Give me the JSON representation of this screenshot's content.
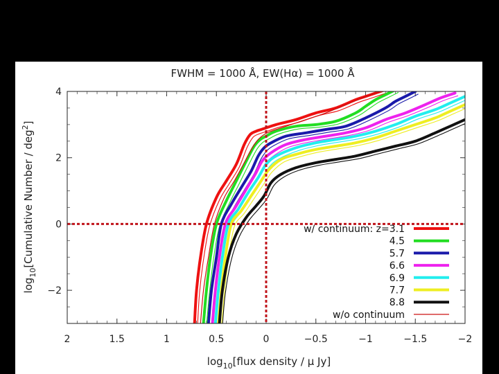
{
  "chart_data": {
    "type": "line",
    "title": "FWHM = 1000 Å, EW(Hα) = 1000 Å",
    "xlabel_main": "log",
    "xlabel_sub": "10",
    "xlabel_rest": "[flux density / μ Jy]",
    "ylabel_main": "log",
    "ylabel_sub": "10",
    "ylabel_rest": "[Cumulative Number / deg",
    "ylabel_sup": "2",
    "ylabel_end": "]",
    "xlim": [
      2,
      -2
    ],
    "ylim": [
      -3,
      4
    ],
    "x_ticks": [
      {
        "value": 2,
        "label": "2"
      },
      {
        "value": 1.5,
        "label": "1.5"
      },
      {
        "value": 1,
        "label": "1"
      },
      {
        "value": 0.5,
        "label": "0.5"
      },
      {
        "value": 0,
        "label": "0"
      },
      {
        "value": -0.5,
        "label": "−0.5"
      },
      {
        "value": -1,
        "label": "−1"
      },
      {
        "value": -1.5,
        "label": "−1.5"
      },
      {
        "value": -2,
        "label": "−2"
      }
    ],
    "y_ticks": [
      {
        "value": 4,
        "label": "4"
      },
      {
        "value": 2,
        "label": "2"
      },
      {
        "value": 0,
        "label": "0"
      },
      {
        "value": -2,
        "label": "−2"
      }
    ],
    "reference_lines": {
      "x": 0,
      "y": 0,
      "color": "#c0141b",
      "style": "dotted"
    },
    "legend_header": "w/ continuum: z=",
    "series": [
      {
        "name": "3.1",
        "color": "#ee1111",
        "x": [
          0.72,
          0.7,
          0.66,
          0.6,
          0.5,
          0.4,
          0.3,
          0.22,
          0.16,
          0.1,
          0.05,
          0.0,
          -0.1,
          -0.3,
          -0.5,
          -0.7,
          -0.9,
          -1.0,
          -1.1,
          -1.2,
          -1.3
        ],
        "y": [
          -3.0,
          -2.0,
          -1.0,
          0.0,
          0.8,
          1.3,
          1.8,
          2.4,
          2.7,
          2.8,
          2.85,
          2.9,
          3.0,
          3.15,
          3.35,
          3.5,
          3.75,
          3.85,
          3.95,
          4.05,
          4.15
        ]
      },
      {
        "name": "4.5",
        "color": "#22dd22",
        "x": [
          0.63,
          0.6,
          0.56,
          0.5,
          0.4,
          0.3,
          0.2,
          0.12,
          0.06,
          0.0,
          -0.1,
          -0.3,
          -0.5,
          -0.7,
          -0.9,
          -1.0,
          -1.1,
          -1.2,
          -1.3
        ],
        "y": [
          -3.0,
          -2.0,
          -1.0,
          0.0,
          0.7,
          1.3,
          1.9,
          2.35,
          2.55,
          2.65,
          2.8,
          2.95,
          3.0,
          3.1,
          3.35,
          3.55,
          3.75,
          3.9,
          4.05
        ]
      },
      {
        "name": "5.7",
        "color": "#1a1aaa",
        "x": [
          0.58,
          0.55,
          0.5,
          0.45,
          0.35,
          0.25,
          0.15,
          0.08,
          0.02,
          -0.05,
          -0.2,
          -0.4,
          -0.6,
          -0.8,
          -1.0,
          -1.2,
          -1.3,
          -1.4,
          -1.5
        ],
        "y": [
          -3.0,
          -2.0,
          -1.0,
          0.0,
          0.6,
          1.1,
          1.6,
          2.05,
          2.3,
          2.45,
          2.65,
          2.75,
          2.85,
          2.95,
          3.2,
          3.5,
          3.7,
          3.85,
          4.0
        ]
      },
      {
        "name": "6.6",
        "color": "#ee22ee",
        "x": [
          0.54,
          0.51,
          0.47,
          0.41,
          0.31,
          0.21,
          0.11,
          0.04,
          -0.05,
          -0.2,
          -0.4,
          -0.6,
          -0.8,
          -1.0,
          -1.2,
          -1.4,
          -1.6,
          -1.75,
          -1.9
        ],
        "y": [
          -3.0,
          -2.0,
          -1.0,
          0.0,
          0.5,
          1.0,
          1.5,
          1.9,
          2.15,
          2.4,
          2.55,
          2.65,
          2.75,
          2.9,
          3.15,
          3.35,
          3.6,
          3.8,
          3.95
        ]
      },
      {
        "name": "6.9",
        "color": "#22eeee",
        "x": [
          0.51,
          0.48,
          0.44,
          0.38,
          0.28,
          0.18,
          0.08,
          0.0,
          -0.1,
          -0.3,
          -0.5,
          -0.7,
          -0.9,
          -1.1,
          -1.3,
          -1.5,
          -1.7,
          -1.85,
          -2.0
        ],
        "y": [
          -3.0,
          -2.0,
          -1.0,
          0.0,
          0.45,
          0.95,
          1.4,
          1.8,
          2.05,
          2.3,
          2.45,
          2.55,
          2.65,
          2.8,
          3.0,
          3.25,
          3.45,
          3.65,
          3.85
        ]
      },
      {
        "name": "7.7",
        "color": "#eeee22",
        "x": [
          0.48,
          0.45,
          0.41,
          0.35,
          0.25,
          0.15,
          0.05,
          -0.03,
          -0.15,
          -0.3,
          -0.5,
          -0.7,
          -0.9,
          -1.1,
          -1.3,
          -1.5,
          -1.7,
          -1.85,
          -2.0
        ],
        "y": [
          -3.0,
          -2.0,
          -1.0,
          0.0,
          0.4,
          0.85,
          1.3,
          1.65,
          1.95,
          2.1,
          2.25,
          2.35,
          2.45,
          2.6,
          2.8,
          3.0,
          3.2,
          3.4,
          3.6
        ]
      },
      {
        "name": "8.8",
        "color": "#111111",
        "x": [
          0.47,
          0.44,
          0.38,
          0.3,
          0.2,
          0.1,
          0.02,
          -0.05,
          -0.15,
          -0.3,
          -0.5,
          -0.7,
          -0.9,
          -1.1,
          -1.3,
          -1.5,
          -1.7,
          -1.85,
          -2.0
        ],
        "y": [
          -3.0,
          -2.0,
          -1.0,
          -0.3,
          0.2,
          0.55,
          0.85,
          1.25,
          1.5,
          1.7,
          1.85,
          1.95,
          2.05,
          2.2,
          2.35,
          2.5,
          2.75,
          2.95,
          3.15
        ]
      },
      {
        "name": "w/o continuum",
        "color": "#cc1111",
        "thin": true,
        "x": [
          0.66,
          0.63,
          0.58,
          0.52,
          0.42,
          0.32,
          0.22,
          0.14,
          0.08,
          0.02,
          -0.05,
          -0.2,
          -0.4,
          -0.6,
          -0.8,
          -1.0,
          -1.1,
          -1.2
        ],
        "y": [
          -3.0,
          -2.0,
          -1.0,
          0.0,
          0.8,
          1.3,
          1.85,
          2.3,
          2.55,
          2.7,
          2.8,
          2.95,
          3.15,
          3.35,
          3.6,
          3.85,
          3.95,
          4.05
        ]
      }
    ]
  }
}
